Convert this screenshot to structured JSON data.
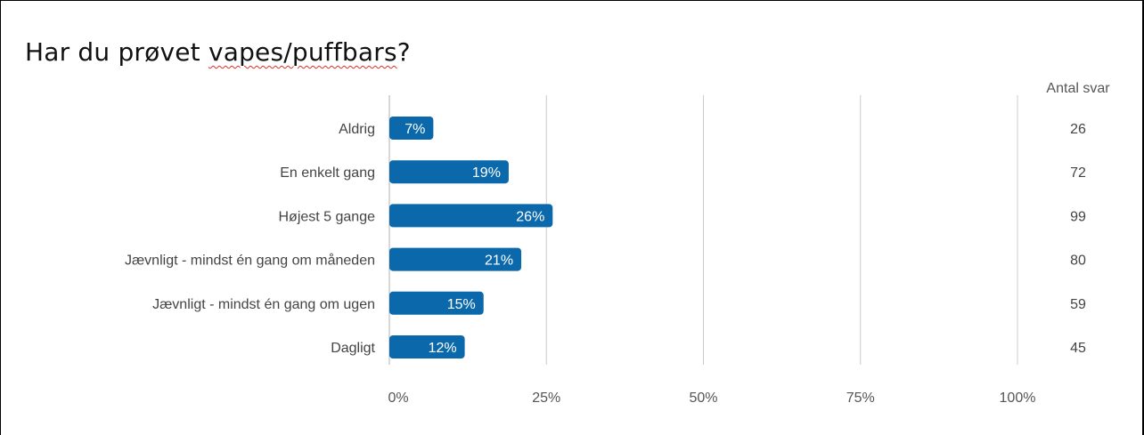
{
  "chart_data": {
    "type": "bar",
    "orientation": "horizontal",
    "title_plain": "Har du prøvet ",
    "title_marked": "vapes/puffbars",
    "title_end": "?",
    "categories": [
      "Aldrig",
      "En enkelt gang",
      "Højest 5 gange",
      "Jævnligt - mindst én gang om måneden",
      "Jævnligt - mindst én gang om ugen",
      "Dagligt"
    ],
    "values": [
      7,
      19,
      26,
      21,
      15,
      12
    ],
    "value_labels": [
      "7%",
      "19%",
      "26%",
      "21%",
      "15%",
      "12%"
    ],
    "counts_header": "Antal svar",
    "counts": [
      "26",
      "72",
      "99",
      "80",
      "59",
      "45"
    ],
    "xticks": [
      0,
      25,
      50,
      75,
      100
    ],
    "xtick_labels": [
      "0%",
      "25%",
      "50%",
      "75%",
      "100%"
    ],
    "xlim": [
      0,
      100
    ],
    "grid": true,
    "bar_color": "#0b69ab",
    "grid_color": "#cccccc"
  }
}
